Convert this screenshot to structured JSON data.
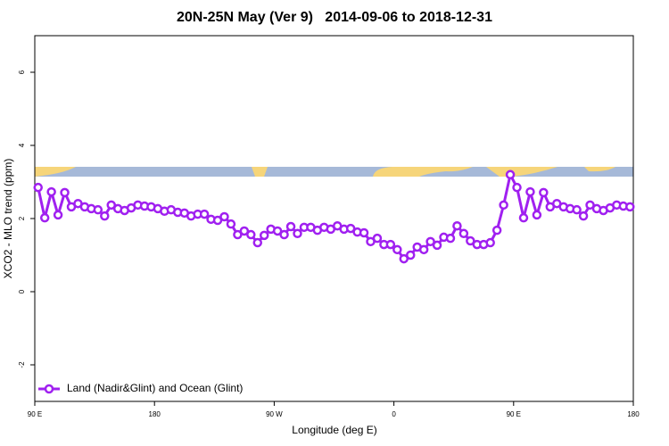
{
  "chart_data": {
    "type": "line",
    "title": "20N-25N May (Ver 9)   2014-09-06 to 2018-12-31",
    "xlabel": "Longitude (deg E)",
    "ylabel": "XCO2 - MLO trend (ppm)",
    "xlim": [
      90,
      540
    ],
    "xticks": [
      {
        "value": 90,
        "label": "90 E"
      },
      180,
      {
        "value": 270,
        "label": "90 W"
      },
      {
        "value": 360,
        "label": "0"
      },
      {
        "value": 450,
        "label": "90 E"
      },
      {
        "value": 540,
        "label": "180"
      }
    ],
    "ylim": [
      -3,
      7
    ],
    "yticks": [
      -2,
      0,
      2,
      4,
      6
    ],
    "legend": "bottomleft",
    "x": [
      92.5,
      97.5,
      102.5,
      107.5,
      112.5,
      117.5,
      122.5,
      127.5,
      132.5,
      137.5,
      142.5,
      147.5,
      152.5,
      157.5,
      162.5,
      167.5,
      172.5,
      177.5,
      182.5,
      187.5,
      192.5,
      197.5,
      202.5,
      207.5,
      212.5,
      217.5,
      222.5,
      227.5,
      232.5,
      237.5,
      242.5,
      247.5,
      252.5,
      257.5,
      262.5,
      267.5,
      272.5,
      277.5,
      282.5,
      287.5,
      292.5,
      297.5,
      302.5,
      307.5,
      312.5,
      317.5,
      322.5,
      327.5,
      332.5,
      337.5,
      342.5,
      347.5,
      352.5,
      357.5,
      362.5,
      367.5,
      372.5,
      377.5,
      382.5,
      387.5,
      392.5,
      397.5,
      402.5,
      407.5,
      412.5,
      417.5,
      422.5,
      427.5,
      432.5,
      437.5,
      442.5,
      447.5,
      452.5,
      457.5,
      462.5,
      467.5,
      472.5,
      477.5,
      482.5,
      487.5,
      492.5,
      497.5,
      502.5,
      507.5,
      512.5,
      517.5,
      522.5,
      527.5,
      532.5,
      537.5
    ],
    "series": [
      {
        "name": "Land (Nadir&Glint) and Ocean (Glint)",
        "color": "#a020f0",
        "values": [
          2.85,
          2.02,
          2.73,
          2.1,
          2.71,
          2.32,
          2.41,
          2.32,
          2.27,
          2.24,
          2.07,
          2.37,
          2.27,
          2.22,
          2.29,
          2.37,
          2.34,
          2.32,
          2.27,
          2.2,
          2.24,
          2.17,
          2.15,
          2.07,
          2.12,
          2.12,
          1.98,
          1.95,
          2.05,
          1.85,
          1.56,
          1.66,
          1.56,
          1.34,
          1.54,
          1.71,
          1.66,
          1.56,
          1.78,
          1.59,
          1.76,
          1.76,
          1.68,
          1.76,
          1.71,
          1.8,
          1.71,
          1.73,
          1.63,
          1.61,
          1.37,
          1.46,
          1.29,
          1.29,
          1.15,
          0.9,
          1.0,
          1.22,
          1.15,
          1.37,
          1.27,
          1.49,
          1.46,
          1.8,
          1.59,
          1.39,
          1.29,
          1.29,
          1.34,
          1.68,
          2.37,
          3.2,
          2.85,
          2.02,
          2.73,
          2.1,
          2.71,
          2.32,
          2.41,
          2.32,
          2.27,
          2.24,
          2.07,
          2.37,
          2.27,
          2.22,
          2.29,
          2.37,
          2.34,
          2.32
        ]
      }
    ]
  }
}
